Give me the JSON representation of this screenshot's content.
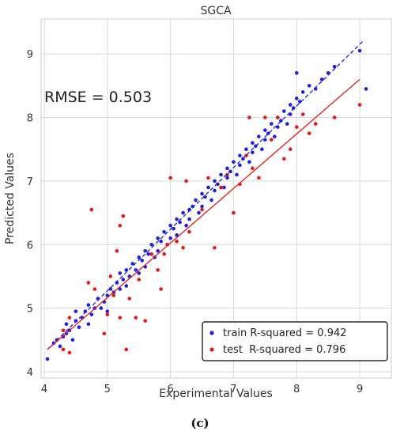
{
  "chart_data": {
    "type": "scatter",
    "title": "SGCA",
    "xlabel": "Experimental Values",
    "ylabel": "Predicted Values",
    "xlim": [
      3.95,
      9.5
    ],
    "ylim": [
      3.9,
      9.55
    ],
    "xticks": [
      4,
      5,
      6,
      7,
      8,
      9
    ],
    "yticks": [
      4,
      5,
      6,
      7,
      8,
      9
    ],
    "grid": true,
    "annotation": "RMSE = 0.503",
    "caption": "(c)",
    "legend_position": "bottom-right",
    "series": [
      {
        "name": "train R-squared = 0.942",
        "color": "#1f1fe0",
        "fit_line": {
          "style": "dashed",
          "x": [
            4.05,
            9.05
          ],
          "y": [
            4.35,
            9.2
          ]
        },
        "points": [
          [
            4.05,
            4.2
          ],
          [
            4.15,
            4.45
          ],
          [
            4.2,
            4.5
          ],
          [
            4.25,
            4.4
          ],
          [
            4.3,
            4.55
          ],
          [
            4.35,
            4.6
          ],
          [
            4.35,
            4.75
          ],
          [
            4.4,
            4.65
          ],
          [
            4.45,
            4.5
          ],
          [
            4.5,
            4.8
          ],
          [
            4.5,
            4.95
          ],
          [
            4.55,
            4.7
          ],
          [
            4.6,
            4.85
          ],
          [
            4.65,
            4.95
          ],
          [
            4.7,
            4.75
          ],
          [
            4.7,
            5.05
          ],
          [
            4.75,
            4.9
          ],
          [
            4.8,
            5.0
          ],
          [
            4.85,
            5.15
          ],
          [
            4.9,
            5.0
          ],
          [
            4.95,
            5.1
          ],
          [
            5.0,
            5.2
          ],
          [
            5.0,
            4.95
          ],
          [
            5.05,
            5.3
          ],
          [
            5.1,
            5.25
          ],
          [
            5.15,
            5.4
          ],
          [
            5.2,
            5.3
          ],
          [
            5.2,
            5.55
          ],
          [
            5.25,
            5.45
          ],
          [
            5.3,
            5.6
          ],
          [
            5.3,
            5.35
          ],
          [
            5.35,
            5.5
          ],
          [
            5.4,
            5.7
          ],
          [
            5.45,
            5.6
          ],
          [
            5.5,
            5.8
          ],
          [
            5.5,
            5.55
          ],
          [
            5.55,
            5.75
          ],
          [
            5.6,
            5.9
          ],
          [
            5.6,
            5.65
          ],
          [
            5.65,
            5.85
          ],
          [
            5.7,
            6.0
          ],
          [
            5.75,
            5.8
          ],
          [
            5.8,
            6.1
          ],
          [
            5.8,
            5.9
          ],
          [
            5.85,
            6.05
          ],
          [
            5.9,
            6.2
          ],
          [
            5.95,
            6.0
          ],
          [
            6.0,
            6.3
          ],
          [
            6.0,
            6.1
          ],
          [
            6.05,
            6.25
          ],
          [
            6.1,
            6.4
          ],
          [
            6.1,
            6.15
          ],
          [
            6.15,
            6.35
          ],
          [
            6.2,
            6.5
          ],
          [
            6.25,
            6.3
          ],
          [
            6.3,
            6.55
          ],
          [
            6.3,
            6.4
          ],
          [
            6.35,
            6.6
          ],
          [
            6.4,
            6.7
          ],
          [
            6.45,
            6.5
          ],
          [
            6.5,
            6.8
          ],
          [
            6.5,
            6.6
          ],
          [
            6.55,
            6.75
          ],
          [
            6.6,
            6.9
          ],
          [
            6.65,
            6.7
          ],
          [
            6.7,
            7.0
          ],
          [
            6.7,
            6.85
          ],
          [
            6.75,
            6.95
          ],
          [
            6.8,
            7.1
          ],
          [
            6.85,
            6.9
          ],
          [
            6.9,
            7.2
          ],
          [
            6.9,
            7.05
          ],
          [
            6.95,
            7.15
          ],
          [
            7.0,
            7.3
          ],
          [
            7.05,
            7.1
          ],
          [
            7.1,
            7.4
          ],
          [
            7.1,
            7.25
          ],
          [
            7.15,
            7.35
          ],
          [
            7.2,
            7.5
          ],
          [
            7.25,
            7.3
          ],
          [
            7.3,
            7.6
          ],
          [
            7.3,
            7.45
          ],
          [
            7.35,
            7.55
          ],
          [
            7.4,
            7.7
          ],
          [
            7.45,
            7.5
          ],
          [
            7.5,
            7.8
          ],
          [
            7.5,
            7.65
          ],
          [
            7.55,
            7.75
          ],
          [
            7.6,
            7.9
          ],
          [
            7.65,
            7.7
          ],
          [
            7.7,
            8.0
          ],
          [
            7.7,
            7.85
          ],
          [
            7.75,
            7.95
          ],
          [
            7.8,
            8.1
          ],
          [
            7.85,
            7.9
          ],
          [
            7.9,
            8.2
          ],
          [
            7.9,
            8.05
          ],
          [
            7.95,
            8.15
          ],
          [
            8.0,
            8.3
          ],
          [
            8.0,
            8.7
          ],
          [
            8.05,
            8.25
          ],
          [
            8.1,
            8.4
          ],
          [
            8.2,
            8.5
          ],
          [
            8.3,
            8.45
          ],
          [
            8.4,
            8.6
          ],
          [
            8.5,
            8.7
          ],
          [
            8.6,
            8.8
          ],
          [
            9.0,
            9.05
          ],
          [
            9.1,
            8.45
          ]
        ]
      },
      {
        "name": "test  R-squared = 0.796",
        "color": "#e81818",
        "fit_line": {
          "style": "solid",
          "x": [
            4.05,
            9.0
          ],
          "y": [
            4.35,
            8.6
          ]
        },
        "points": [
          [
            4.3,
            4.35
          ],
          [
            4.3,
            4.65
          ],
          [
            4.4,
            4.3
          ],
          [
            4.4,
            4.85
          ],
          [
            4.7,
            5.4
          ],
          [
            4.75,
            6.55
          ],
          [
            4.8,
            5.3
          ],
          [
            4.95,
            4.6
          ],
          [
            5.0,
            4.9
          ],
          [
            5.05,
            5.5
          ],
          [
            5.1,
            5.2
          ],
          [
            5.15,
            5.9
          ],
          [
            5.2,
            6.3
          ],
          [
            5.2,
            4.85
          ],
          [
            5.25,
            6.45
          ],
          [
            5.3,
            4.35
          ],
          [
            5.35,
            5.15
          ],
          [
            5.45,
            4.85
          ],
          [
            5.5,
            5.45
          ],
          [
            5.6,
            4.8
          ],
          [
            5.7,
            5.85
          ],
          [
            5.8,
            5.6
          ],
          [
            5.85,
            5.3
          ],
          [
            5.9,
            5.85
          ],
          [
            5.95,
            6.0
          ],
          [
            6.0,
            7.05
          ],
          [
            6.1,
            6.05
          ],
          [
            6.2,
            5.95
          ],
          [
            6.25,
            7.0
          ],
          [
            6.3,
            6.2
          ],
          [
            6.5,
            6.55
          ],
          [
            6.6,
            7.05
          ],
          [
            6.7,
            5.95
          ],
          [
            6.8,
            6.9
          ],
          [
            6.9,
            7.1
          ],
          [
            7.0,
            6.5
          ],
          [
            7.1,
            6.95
          ],
          [
            7.2,
            7.4
          ],
          [
            7.25,
            8.0
          ],
          [
            7.3,
            7.2
          ],
          [
            7.4,
            7.05
          ],
          [
            7.5,
            8.0
          ],
          [
            7.6,
            7.65
          ],
          [
            7.7,
            8.0
          ],
          [
            7.8,
            7.35
          ],
          [
            7.9,
            7.5
          ],
          [
            8.0,
            7.85
          ],
          [
            8.1,
            8.05
          ],
          [
            8.2,
            7.75
          ],
          [
            8.3,
            7.9
          ],
          [
            8.6,
            8.0
          ],
          [
            9.0,
            8.2
          ]
        ]
      }
    ]
  }
}
